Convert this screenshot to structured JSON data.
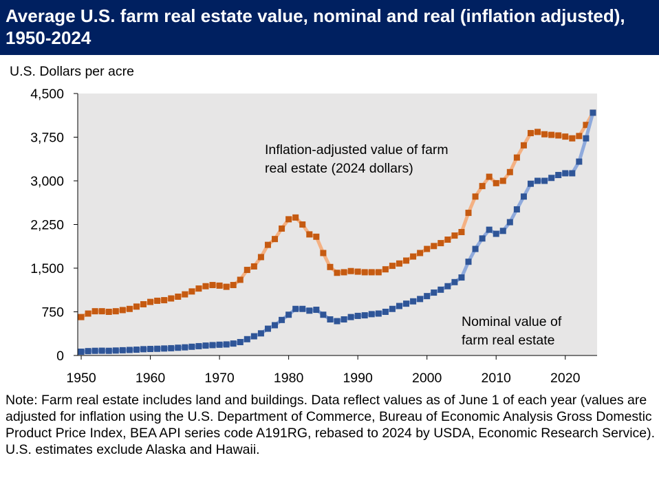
{
  "chart_data": {
    "type": "line",
    "title": "Average U.S. farm real estate value, nominal and real (inflation adjusted), 1950-2024",
    "y_label": "U.S. Dollars per acre",
    "note": "Note: Farm real estate includes land and buildings. Data reflect values as of June 1 of each year (values are adjusted for inflation using the U.S. Department of Commerce, Bureau of Economic Analysis Gross Domestic Product Price Index, BEA API series code A191RG, rebased to 2024 by USDA, Economic Research Service). U.S. estimates exclude Alaska and Hawaii.",
    "x": [
      1950,
      1951,
      1952,
      1953,
      1954,
      1955,
      1956,
      1957,
      1958,
      1959,
      1960,
      1961,
      1962,
      1963,
      1964,
      1965,
      1966,
      1967,
      1968,
      1969,
      1970,
      1971,
      1972,
      1973,
      1974,
      1975,
      1976,
      1977,
      1978,
      1979,
      1980,
      1981,
      1982,
      1983,
      1984,
      1985,
      1986,
      1987,
      1988,
      1989,
      1990,
      1991,
      1992,
      1993,
      1994,
      1995,
      1996,
      1997,
      1998,
      1999,
      2000,
      2001,
      2002,
      2003,
      2004,
      2005,
      2006,
      2007,
      2008,
      2009,
      2010,
      2011,
      2012,
      2013,
      2014,
      2015,
      2016,
      2017,
      2018,
      2019,
      2020,
      2021,
      2022,
      2023,
      2024
    ],
    "series": [
      {
        "name": "Inflation-adjusted value of farm real estate (2024 dollars)",
        "color": "#c55a11",
        "line_color": "#f4b183",
        "values": [
          660,
          720,
          760,
          760,
          750,
          760,
          780,
          800,
          840,
          880,
          920,
          940,
          950,
          980,
          1010,
          1050,
          1100,
          1150,
          1190,
          1210,
          1200,
          1180,
          1210,
          1300,
          1470,
          1530,
          1690,
          1900,
          2000,
          2180,
          2340,
          2370,
          2250,
          2080,
          2040,
          1760,
          1520,
          1420,
          1430,
          1450,
          1440,
          1430,
          1430,
          1430,
          1480,
          1540,
          1580,
          1630,
          1700,
          1760,
          1830,
          1880,
          1930,
          1990,
          2060,
          2120,
          2450,
          2730,
          2910,
          3070,
          2960,
          3000,
          3150,
          3400,
          3610,
          3820,
          3840,
          3800,
          3790,
          3780,
          3760,
          3730,
          3770,
          3960,
          4170
        ]
      },
      {
        "name": "Nominal value of farm real estate",
        "color": "#2f5597",
        "line_color": "#8faadc",
        "values": [
          65,
          75,
          80,
          82,
          80,
          85,
          90,
          95,
          100,
          108,
          112,
          115,
          120,
          125,
          133,
          140,
          150,
          160,
          170,
          178,
          185,
          190,
          205,
          230,
          280,
          330,
          380,
          460,
          520,
          610,
          700,
          800,
          800,
          770,
          785,
          700,
          620,
          590,
          620,
          660,
          680,
          690,
          710,
          720,
          750,
          800,
          850,
          890,
          930,
          970,
          1020,
          1080,
          1130,
          1190,
          1260,
          1340,
          1610,
          1830,
          2010,
          2160,
          2090,
          2140,
          2290,
          2510,
          2730,
          2950,
          3000,
          3000,
          3050,
          3100,
          3130,
          3130,
          3330,
          3730,
          4170
        ]
      }
    ],
    "xlim": [
      1949.5,
      2024.6
    ],
    "xticks": [
      1950,
      1960,
      1970,
      1980,
      1990,
      2000,
      2010,
      2020
    ],
    "ylim": [
      0,
      4500
    ],
    "yticks": [
      0,
      {
        "value": 750,
        "label": "750"
      },
      {
        "value": 1500,
        "label": "1,500"
      },
      {
        "value": 2250,
        "label": "2,250"
      },
      {
        "value": 3000,
        "label": "3,000"
      },
      {
        "value": 3750,
        "label": "3,750"
      },
      {
        "value": 4500,
        "label": "4,500"
      }
    ],
    "grid": false
  }
}
